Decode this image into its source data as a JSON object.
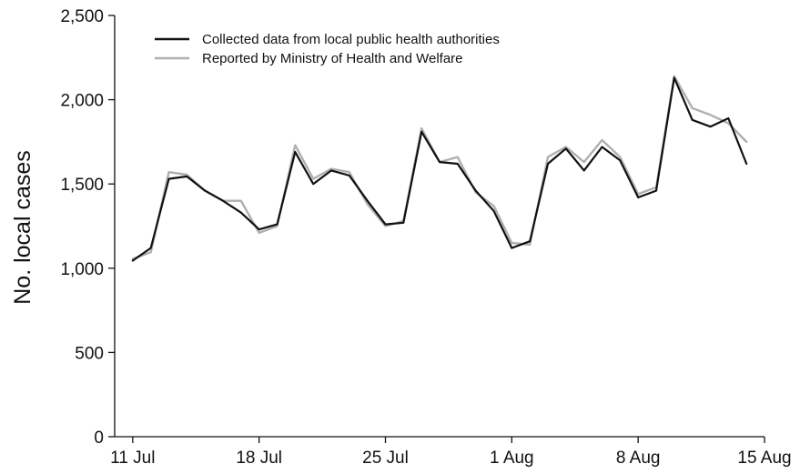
{
  "chart_data": {
    "type": "line",
    "title": "",
    "xlabel": "",
    "ylabel": "No. local cases",
    "ylim": [
      0,
      2500
    ],
    "y_ticks": [
      0,
      500,
      1000,
      1500,
      2000,
      2500
    ],
    "y_tick_labels": [
      "0",
      "500",
      "1,000",
      "1,500",
      "2,000",
      "2,500"
    ],
    "x_ticks": [
      "2021-07-11",
      "2021-07-18",
      "2021-07-25",
      "2021-08-01",
      "2021-08-08",
      "2021-08-15"
    ],
    "x_tick_labels": [
      "11 Jul",
      "18 Jul",
      "25 Jul",
      "1 Aug",
      "8 Aug",
      "15 Aug"
    ],
    "xlim": [
      "2021-07-10",
      "2021-08-15"
    ],
    "grid": false,
    "legend_position": "top-left",
    "x": [
      "2021-07-11",
      "2021-07-12",
      "2021-07-13",
      "2021-07-14",
      "2021-07-15",
      "2021-07-16",
      "2021-07-17",
      "2021-07-18",
      "2021-07-19",
      "2021-07-20",
      "2021-07-21",
      "2021-07-22",
      "2021-07-23",
      "2021-07-24",
      "2021-07-25",
      "2021-07-26",
      "2021-07-27",
      "2021-07-28",
      "2021-07-29",
      "2021-07-30",
      "2021-07-31",
      "2021-08-01",
      "2021-08-02",
      "2021-08-03",
      "2021-08-04",
      "2021-08-05",
      "2021-08-06",
      "2021-08-07",
      "2021-08-08",
      "2021-08-09",
      "2021-08-10",
      "2021-08-11",
      "2021-08-12",
      "2021-08-13",
      "2021-08-14"
    ],
    "series": [
      {
        "name": "Collected data from local public health authorities",
        "color": "#111111",
        "values": [
          1045,
          1120,
          1530,
          1545,
          1460,
          1400,
          1330,
          1230,
          1260,
          1690,
          1500,
          1580,
          1550,
          1400,
          1260,
          1270,
          1810,
          1630,
          1620,
          1460,
          1340,
          1120,
          1160,
          1620,
          1710,
          1580,
          1720,
          1640,
          1420,
          1460,
          2130,
          1880,
          1840,
          1890,
          1620
        ]
      },
      {
        "name": "Reported by Ministry of Health and Welfare",
        "color": "#b0b0b0",
        "values": [
          1055,
          1095,
          1570,
          1555,
          1460,
          1400,
          1400,
          1210,
          1250,
          1730,
          1530,
          1590,
          1570,
          1380,
          1250,
          1280,
          1830,
          1630,
          1660,
          1450,
          1370,
          1150,
          1140,
          1660,
          1720,
          1630,
          1760,
          1660,
          1440,
          1480,
          2140,
          1950,
          1910,
          1860,
          1750
        ]
      }
    ]
  }
}
